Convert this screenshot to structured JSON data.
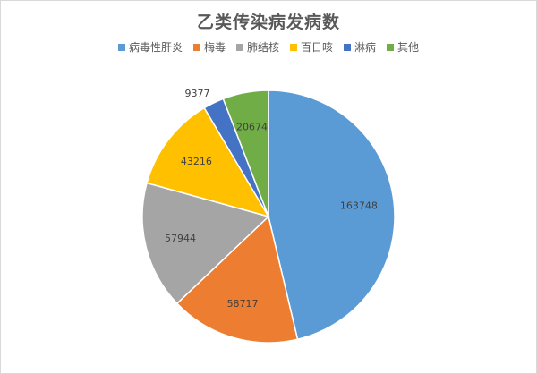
{
  "chart_data": {
    "type": "pie",
    "title": "乙类传染病发病数",
    "legend_position": "top",
    "categories": [
      "病毒性肝炎",
      "梅毒",
      "肺结核",
      "百日咳",
      "淋病",
      "其他"
    ],
    "values": [
      163748,
      58717,
      57944,
      43216,
      9377,
      20674
    ],
    "colors": [
      "#5b9bd5",
      "#ed7d31",
      "#a5a5a5",
      "#ffc000",
      "#4472c4",
      "#70ad47"
    ],
    "start_angle_deg": 0,
    "direction": "clockwise"
  }
}
